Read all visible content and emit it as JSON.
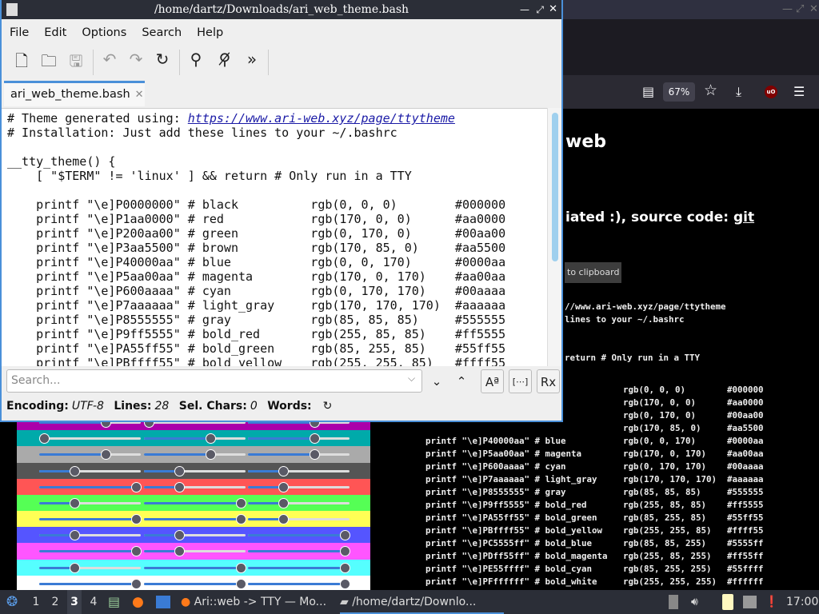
{
  "editor": {
    "title": "/home/dartz/Downloads/ari_web_theme.bash",
    "menu": [
      "File",
      "Edit",
      "Options",
      "Search",
      "Help"
    ],
    "tab_label": "ari_web_theme.bash",
    "code_header": [
      "# Theme generated using: ",
      "https://www.ari-web.xyz/page/ttytheme",
      "# Installation: Just add these lines to your ~/.bashrc",
      "",
      "__tty_theme() {",
      "    [ \"$TERM\" != 'linux' ] && return # Only run in a TTY",
      ""
    ],
    "search_placeholder": "Search...",
    "status": {
      "encoding_label": "Encoding:",
      "encoding": "UTF-8",
      "lines_label": "Lines:",
      "lines": "28",
      "sel_label": "Sel. Chars:",
      "sel": "0",
      "words_label": "Words:"
    }
  },
  "colors": [
    {
      "idx": "0",
      "hex": "000000",
      "name": "black",
      "rgb": [
        0,
        0,
        0
      ]
    },
    {
      "idx": "1",
      "hex": "aa0000",
      "name": "red",
      "rgb": [
        170,
        0,
        0
      ]
    },
    {
      "idx": "2",
      "hex": "00aa00",
      "name": "green",
      "rgb": [
        0,
        170,
        0
      ]
    },
    {
      "idx": "3",
      "hex": "aa5500",
      "name": "brown",
      "rgb": [
        170,
        85,
        0
      ]
    },
    {
      "idx": "4",
      "hex": "0000aa",
      "name": "blue",
      "rgb": [
        0,
        0,
        170
      ]
    },
    {
      "idx": "5",
      "hex": "aa00aa",
      "name": "magenta",
      "rgb": [
        170,
        0,
        170
      ]
    },
    {
      "idx": "6",
      "hex": "00aaaa",
      "name": "cyan",
      "rgb": [
        0,
        170,
        170
      ]
    },
    {
      "idx": "7",
      "hex": "aaaaaa",
      "name": "light_gray",
      "rgb": [
        170,
        170,
        170
      ]
    },
    {
      "idx": "8",
      "hex": "555555",
      "name": "gray",
      "rgb": [
        85,
        85,
        85
      ]
    },
    {
      "idx": "9",
      "hex": "ff5555",
      "name": "bold_red",
      "rgb": [
        255,
        85,
        85
      ]
    },
    {
      "idx": "A",
      "hex": "55ff55",
      "name": "bold_green",
      "rgb": [
        85,
        255,
        85
      ]
    },
    {
      "idx": "B",
      "hex": "ffff55",
      "name": "bold_yellow",
      "rgb": [
        255,
        255,
        85
      ]
    },
    {
      "idx": "C",
      "hex": "5555ff",
      "name": "bold_blue",
      "rgb": [
        85,
        85,
        255
      ]
    },
    {
      "idx": "D",
      "hex": "ff55ff",
      "name": "bold_magenta",
      "rgb": [
        255,
        85,
        255
      ]
    },
    {
      "idx": "E",
      "hex": "55ffff",
      "name": "bold_cyan",
      "rgb": [
        85,
        255,
        255
      ]
    },
    {
      "idx": "F",
      "hex": "ffffff",
      "name": "bold_white",
      "rgb": [
        255,
        255,
        255
      ]
    }
  ],
  "browser": {
    "zoom": "67%",
    "heading_fragment": "web",
    "subheading_fragment": "iated :), source code: ",
    "git_link": "git",
    "copy_fragment": "to clipboard",
    "code_fragments": [
      "//www.ari-web.xyz/page/ttytheme",
      "lines to your ~/.bashrc",
      "",
      "",
      "return # Only run in a TTY"
    ],
    "ublock_label": "uO"
  },
  "taskbar": {
    "workspaces": [
      "1",
      "2",
      "3",
      "4"
    ],
    "active_workspace": "3",
    "tasks": [
      "Ari::web -> TTY — Mo...",
      "/home/dartz/Downlo..."
    ],
    "clock": "17:00"
  }
}
